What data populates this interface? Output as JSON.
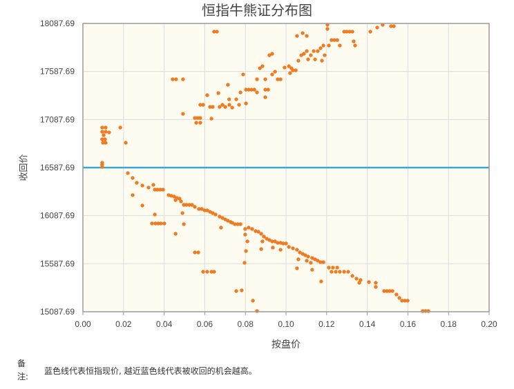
{
  "chart_data": {
    "type": "scatter",
    "title": "恒指牛熊证分布图",
    "xlabel": "按盘价",
    "ylabel": "收回价",
    "xlim": [
      0,
      0.2
    ],
    "ylim": [
      15087.69,
      18087.69
    ],
    "xticks": [
      "0.00",
      "0.02",
      "0.04",
      "0.06",
      "0.08",
      "0.10",
      "0.12",
      "0.14",
      "0.16",
      "0.18",
      "0.20"
    ],
    "yticks": [
      "18087.69",
      "17587.69",
      "17087.69",
      "16587.69",
      "16087.69",
      "15587.69",
      "15087.69"
    ],
    "grid": true,
    "reference_line": {
      "y": 16587.69,
      "color": "#36a7d3"
    },
    "point_color": "#ef7b22",
    "plot_background": "#fefcf0",
    "points": [
      [
        0.0095,
        17004
      ],
      [
        0.0112,
        17004
      ],
      [
        0.0095,
        16961
      ],
      [
        0.0112,
        16961
      ],
      [
        0.0102,
        16925
      ],
      [
        0.0095,
        16882
      ],
      [
        0.0109,
        16882
      ],
      [
        0.0099,
        16846
      ],
      [
        0.0112,
        16846
      ],
      [
        0.0129,
        16954
      ],
      [
        0.0184,
        17004
      ],
      [
        0.0211,
        16846
      ],
      [
        0.0095,
        16638
      ],
      [
        0.0095,
        16616
      ],
      [
        0.0095,
        16595
      ],
      [
        0.0221,
        16530
      ],
      [
        0.0245,
        16480
      ],
      [
        0.0265,
        16430
      ],
      [
        0.0245,
        16301
      ],
      [
        0.0293,
        16193
      ],
      [
        0.0293,
        16401
      ],
      [
        0.0323,
        16380
      ],
      [
        0.0347,
        16408
      ],
      [
        0.0354,
        16358
      ],
      [
        0.0367,
        16358
      ],
      [
        0.0381,
        16358
      ],
      [
        0.0395,
        16358
      ],
      [
        0.0354,
        16100
      ],
      [
        0.034,
        16006
      ],
      [
        0.0357,
        16006
      ],
      [
        0.0371,
        16006
      ],
      [
        0.0384,
        16006
      ],
      [
        0.0401,
        16006
      ],
      [
        0.0422,
        16301
      ],
      [
        0.0435,
        16294
      ],
      [
        0.0449,
        16287
      ],
      [
        0.0463,
        16272
      ],
      [
        0.0476,
        16265
      ],
      [
        0.0456,
        16250
      ],
      [
        0.0483,
        16236
      ],
      [
        0.0497,
        16200
      ],
      [
        0.051,
        16200
      ],
      [
        0.0524,
        16200
      ],
      [
        0.0537,
        16200
      ],
      [
        0.0551,
        16179
      ],
      [
        0.049,
        16114
      ],
      [
        0.0497,
        15999
      ],
      [
        0.0456,
        15899
      ],
      [
        0.0571,
        16157
      ],
      [
        0.0585,
        16157
      ],
      [
        0.0599,
        16143
      ],
      [
        0.0612,
        16143
      ],
      [
        0.0626,
        16128
      ],
      [
        0.0639,
        16114
      ],
      [
        0.0653,
        16100
      ],
      [
        0.0673,
        16078
      ],
      [
        0.0687,
        16064
      ],
      [
        0.0701,
        16049
      ],
      [
        0.0714,
        16035
      ],
      [
        0.0728,
        16021
      ],
      [
        0.068,
        15963
      ],
      [
        0.0735,
        16014
      ],
      [
        0.0748,
        15999
      ],
      [
        0.0762,
        15999
      ],
      [
        0.0776,
        15999
      ],
      [
        0.0799,
        15949
      ],
      [
        0.0816,
        15963
      ],
      [
        0.0833,
        15949
      ],
      [
        0.085,
        15927
      ],
      [
        0.0799,
        15891
      ],
      [
        0.0864,
        15920
      ],
      [
        0.0878,
        15899
      ],
      [
        0.0891,
        15870
      ],
      [
        0.0905,
        15848
      ],
      [
        0.0918,
        15834
      ],
      [
        0.0932,
        15820
      ],
      [
        0.0946,
        15820
      ],
      [
        0.0959,
        15805
      ],
      [
        0.0973,
        15805
      ],
      [
        0.0986,
        15798
      ],
      [
        0.1,
        15798
      ],
      [
        0.0884,
        15820
      ],
      [
        0.081,
        15820
      ],
      [
        0.0803,
        15719
      ],
      [
        0.0878,
        15740
      ],
      [
        0.0935,
        15755
      ],
      [
        0.0973,
        15733
      ],
      [
        0.1014,
        15762
      ],
      [
        0.1034,
        15748
      ],
      [
        0.1054,
        15733
      ],
      [
        0.1068,
        15705
      ],
      [
        0.1082,
        15690
      ],
      [
        0.1095,
        15676
      ],
      [
        0.1109,
        15662
      ],
      [
        0.1129,
        15647
      ],
      [
        0.1143,
        15633
      ],
      [
        0.1156,
        15619
      ],
      [
        0.117,
        15604
      ],
      [
        0.1184,
        15604
      ],
      [
        0.1061,
        15633
      ],
      [
        0.1102,
        15619
      ],
      [
        0.1122,
        15597
      ],
      [
        0.1129,
        15525
      ],
      [
        0.1054,
        15540
      ],
      [
        0.1173,
        15403
      ],
      [
        0.0796,
        15597
      ],
      [
        0.0782,
        15310
      ],
      [
        0.0755,
        15303
      ],
      [
        0.0837,
        15203
      ],
      [
        0.0857,
        15095
      ],
      [
        0.1211,
        15547
      ],
      [
        0.1231,
        15547
      ],
      [
        0.1252,
        15547
      ],
      [
        0.1224,
        15504
      ],
      [
        0.1245,
        15504
      ],
      [
        0.1265,
        15504
      ],
      [
        0.1286,
        15504
      ],
      [
        0.1306,
        15504
      ],
      [
        0.1327,
        15461
      ],
      [
        0.1347,
        15432
      ],
      [
        0.1367,
        15418
      ],
      [
        0.1361,
        15389
      ],
      [
        0.1408,
        15396
      ],
      [
        0.1442,
        15389
      ],
      [
        0.1442,
        15346
      ],
      [
        0.1483,
        15303
      ],
      [
        0.1497,
        15303
      ],
      [
        0.151,
        15303
      ],
      [
        0.1524,
        15303
      ],
      [
        0.1544,
        15267
      ],
      [
        0.1558,
        15231
      ],
      [
        0.1571,
        15203
      ],
      [
        0.1585,
        15203
      ],
      [
        0.1599,
        15203
      ],
      [
        0.1673,
        15095
      ],
      [
        0.1687,
        15095
      ],
      [
        0.1701,
        15095
      ],
      [
        0.0592,
        15504
      ],
      [
        0.0612,
        15504
      ],
      [
        0.0633,
        15504
      ],
      [
        0.0646,
        15504
      ],
      [
        0.0551,
        15705
      ],
      [
        0.0568,
        15705
      ],
      [
        0.0442,
        17506
      ],
      [
        0.0459,
        17506
      ],
      [
        0.0493,
        17506
      ],
      [
        0.0493,
        17147
      ],
      [
        0.0551,
        17104
      ],
      [
        0.0565,
        17104
      ],
      [
        0.0578,
        17104
      ],
      [
        0.0558,
        17054
      ],
      [
        0.0578,
        17054
      ],
      [
        0.0578,
        17241
      ],
      [
        0.0592,
        17241
      ],
      [
        0.0612,
        17341
      ],
      [
        0.0626,
        17219
      ],
      [
        0.0639,
        17219
      ],
      [
        0.0633,
        17097
      ],
      [
        0.0646,
        18002
      ],
      [
        0.066,
        18002
      ],
      [
        0.0667,
        17363
      ],
      [
        0.0673,
        17219
      ],
      [
        0.0687,
        17241
      ],
      [
        0.0701,
        17219
      ],
      [
        0.0714,
        17449
      ],
      [
        0.0721,
        17241
      ],
      [
        0.0735,
        17212
      ],
      [
        0.0755,
        17298
      ],
      [
        0.0769,
        17241
      ],
      [
        0.0776,
        17370
      ],
      [
        0.0789,
        17557
      ],
      [
        0.0803,
        17399
      ],
      [
        0.0816,
        17399
      ],
      [
        0.083,
        17399
      ],
      [
        0.0844,
        17399
      ],
      [
        0.0857,
        17506
      ],
      [
        0.0871,
        17621
      ],
      [
        0.0884,
        17643
      ],
      [
        0.0898,
        17399
      ],
      [
        0.0912,
        17399
      ],
      [
        0.0898,
        17506
      ],
      [
        0.0918,
        17757
      ],
      [
        0.0932,
        17772
      ],
      [
        0.0898,
        17320
      ],
      [
        0.0932,
        17557
      ],
      [
        0.0946,
        17586
      ],
      [
        0.0959,
        17506
      ],
      [
        0.0973,
        17506
      ],
      [
        0.1014,
        17643
      ],
      [
        0.1027,
        17621
      ],
      [
        0.102,
        17571
      ],
      [
        0.1034,
        17600
      ],
      [
        0.1048,
        17600
      ],
      [
        0.1061,
        17700
      ],
      [
        0.1075,
        17757
      ],
      [
        0.1088,
        17772
      ],
      [
        0.1102,
        17800
      ],
      [
        0.1102,
        17958
      ],
      [
        0.1054,
        17958
      ],
      [
        0.1082,
        17987
      ],
      [
        0.1109,
        17714
      ],
      [
        0.1122,
        17757
      ],
      [
        0.1136,
        17800
      ],
      [
        0.1143,
        17714
      ],
      [
        0.1156,
        17800
      ],
      [
        0.117,
        17829
      ],
      [
        0.1184,
        17858
      ],
      [
        0.1177,
        17700
      ],
      [
        0.119,
        17757
      ],
      [
        0.1204,
        18030
      ],
      [
        0.1204,
        18073
      ],
      [
        0.1211,
        17858
      ],
      [
        0.1224,
        17915
      ],
      [
        0.1238,
        17915
      ],
      [
        0.1252,
        17915
      ],
      [
        0.1265,
        17858
      ],
      [
        0.1286,
        18002
      ],
      [
        0.1299,
        18002
      ],
      [
        0.1313,
        18002
      ],
      [
        0.1327,
        18002
      ],
      [
        0.1333,
        17901
      ],
      [
        0.134,
        17858
      ],
      [
        0.1415,
        18002
      ],
      [
        0.1449,
        18045
      ],
      [
        0.1476,
        18073
      ],
      [
        0.1517,
        18059
      ],
      [
        0.1531,
        18059
      ],
      [
        0.0803,
        17255
      ],
      [
        0.0857,
        17370
      ],
      [
        0.072,
        17298
      ],
      [
        0.0993,
        17629
      ]
    ]
  },
  "note": {
    "label_lines": [
      "备",
      "注:"
    ],
    "text": "蓝色线代表恒指现价, 越近蓝色线代表被收回的机会越高。"
  }
}
